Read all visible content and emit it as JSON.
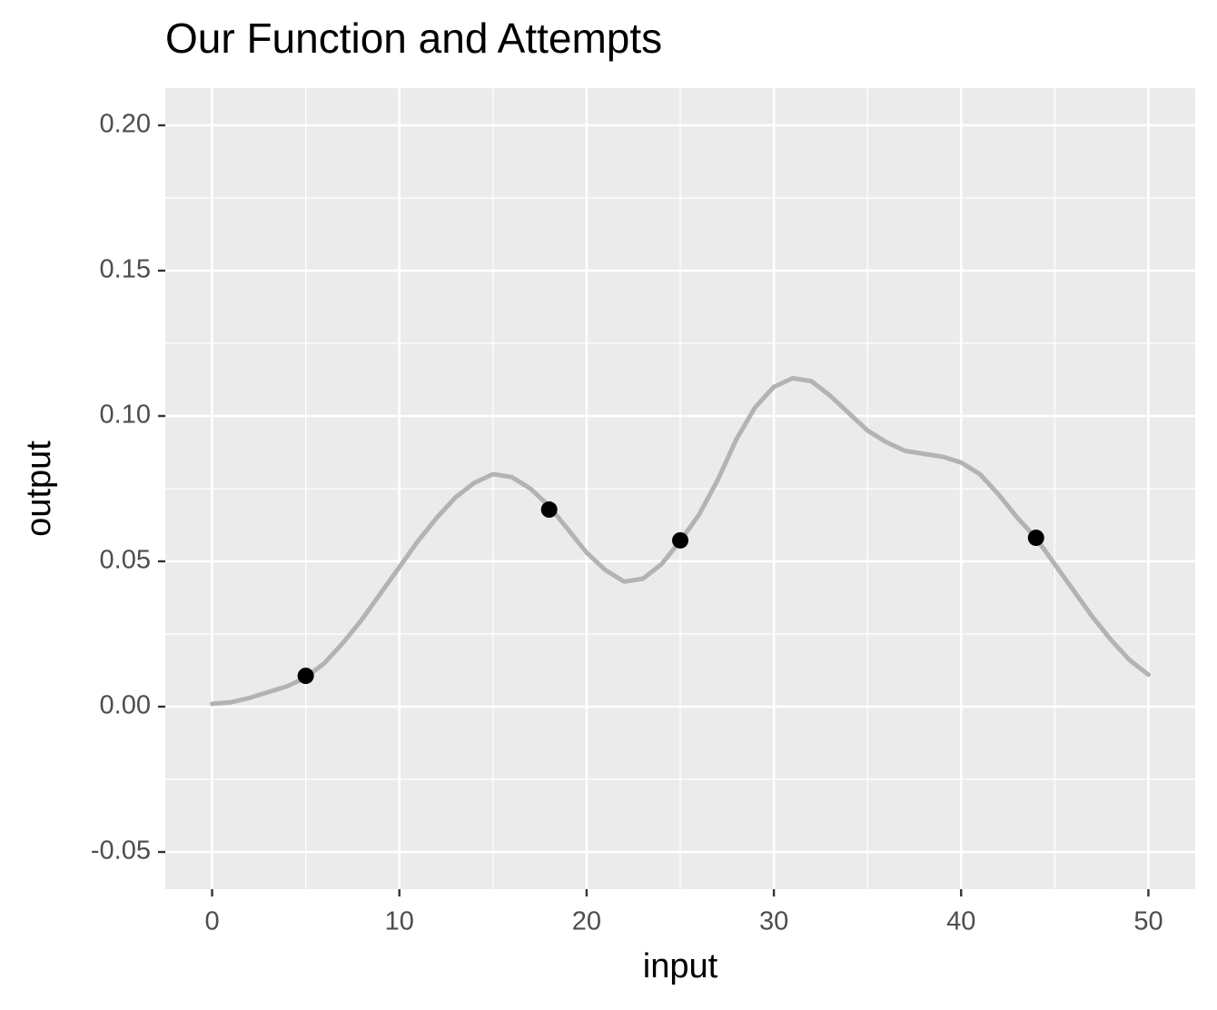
{
  "chart_data": {
    "type": "line",
    "title": "Our Function and Attempts",
    "xlabel": "input",
    "ylabel": "output",
    "xlim": [
      -2.5,
      52.5
    ],
    "ylim": [
      -0.0628,
      0.2128
    ],
    "xticks": [
      0,
      10,
      20,
      30,
      40,
      50
    ],
    "yticks": [
      {
        "value": -0.05,
        "label": "-0.05"
      },
      {
        "value": 0,
        "label": "0.00"
      },
      {
        "value": 0.05,
        "label": "0.05"
      },
      {
        "value": 0.1,
        "label": "0.10"
      },
      {
        "value": 0.15,
        "label": "0.15"
      },
      {
        "value": 0.2,
        "label": "0.20"
      }
    ],
    "x_minor_ticks": [
      5,
      15,
      25,
      35,
      45
    ],
    "y_minor_ticks": [
      -0.025,
      0.025,
      0.075,
      0.125,
      0.175
    ],
    "grid": true,
    "series": [
      {
        "type": "line",
        "color": "#b3b3b3",
        "x": [
          0,
          1,
          2,
          3,
          4,
          5,
          6,
          7,
          8,
          9,
          10,
          11,
          12,
          13,
          14,
          15,
          16,
          17,
          18,
          19,
          20,
          21,
          22,
          23,
          24,
          25,
          26,
          27,
          28,
          29,
          30,
          31,
          32,
          33,
          34,
          35,
          36,
          37,
          38,
          39,
          40,
          41,
          42,
          43,
          44,
          45,
          46,
          47,
          48,
          49,
          50
        ],
        "values": [
          0.001,
          0.0015,
          0.003,
          0.005,
          0.007,
          0.01,
          0.015,
          0.022,
          0.03,
          0.039,
          0.048,
          0.057,
          0.065,
          0.072,
          0.077,
          0.08,
          0.079,
          0.075,
          0.069,
          0.061,
          0.053,
          0.047,
          0.043,
          0.044,
          0.049,
          0.057,
          0.066,
          0.078,
          0.092,
          0.103,
          0.11,
          0.113,
          0.112,
          0.107,
          0.101,
          0.095,
          0.091,
          0.088,
          0.087,
          0.086,
          0.084,
          0.08,
          0.073,
          0.065,
          0.058,
          0.049,
          0.04,
          0.031,
          0.023,
          0.016,
          0.011
        ]
      },
      {
        "type": "scatter",
        "color": "#000000",
        "x": [
          5,
          18,
          25,
          44
        ],
        "values": [
          0.0106,
          0.0678,
          0.0572,
          0.0581
        ]
      }
    ]
  }
}
